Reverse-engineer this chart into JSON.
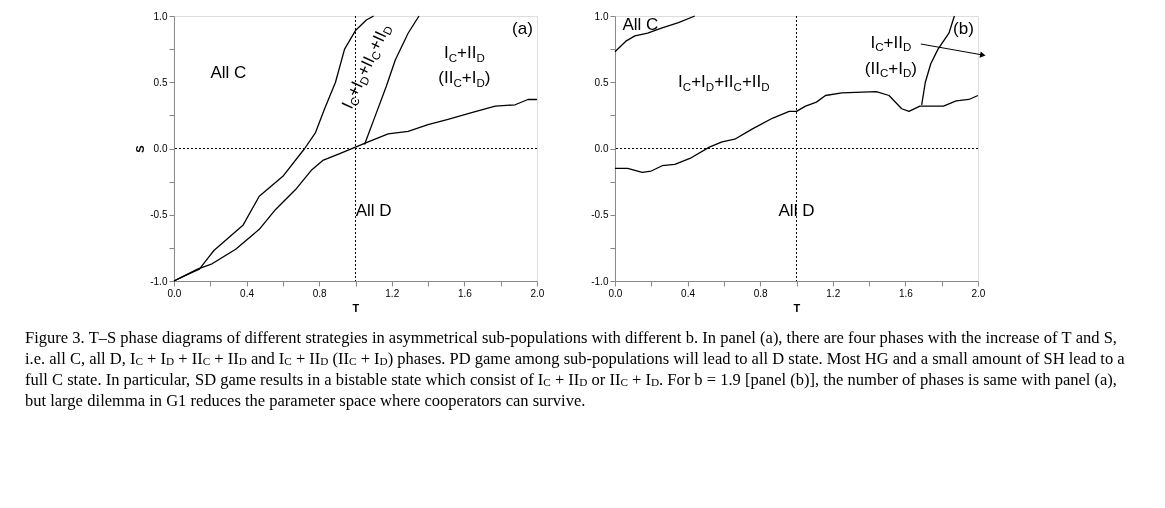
{
  "chart_data": [
    {
      "type": "line",
      "xlabel": "T",
      "ylabel": "S",
      "xlim": [
        0,
        2
      ],
      "ylim": [
        -1,
        1
      ],
      "xticks": [
        {
          "value": 0,
          "label": "0.0"
        },
        {
          "value": 0.2,
          "label": null
        },
        {
          "value": 0.4,
          "label": "0.4"
        },
        {
          "value": 0.6,
          "label": null
        },
        {
          "value": 0.8,
          "label": "0.8"
        },
        {
          "value": 1.0,
          "label": null
        },
        {
          "value": 1.2,
          "label": "1.2"
        },
        {
          "value": 1.4,
          "label": null
        },
        {
          "value": 1.6,
          "label": "1.6"
        },
        {
          "value": 1.8,
          "label": null
        },
        {
          "value": 2.0,
          "label": "2.0"
        }
      ],
      "yticks": [
        {
          "value": -1,
          "label": "-1.0"
        },
        {
          "value": -0.75,
          "label": null
        },
        {
          "value": -0.5,
          "label": "-0.5"
        },
        {
          "value": -0.25,
          "label": null
        },
        {
          "value": 0,
          "label": "0.0"
        },
        {
          "value": 0.25,
          "label": null
        },
        {
          "value": 0.5,
          "label": "0.5"
        },
        {
          "value": 0.75,
          "label": null
        },
        {
          "value": 1,
          "label": "1.0"
        }
      ],
      "grid": false,
      "legend": false,
      "series": [
        {
          "color": "#000000",
          "x": [
            0,
            0.06,
            0.13,
            0.21,
            0.34,
            0.47,
            0.56,
            0.67,
            0.76,
            0.82,
            0.91,
            1.0,
            1.07,
            1.18,
            1.29,
            1.4,
            1.51,
            1.64,
            1.77,
            1.88,
            1.95,
            2.0
          ],
          "values": [
            -1,
            -0.96,
            -0.91,
            -0.87,
            -0.76,
            -0.61,
            -0.46,
            -0.31,
            -0.16,
            -0.09,
            -0.04,
            0.01,
            0.05,
            0.11,
            0.13,
            0.18,
            0.22,
            0.27,
            0.32,
            0.33,
            0.37,
            0.37
          ]
        },
        {
          "color": "#000000",
          "x": [
            0,
            0.06,
            0.14,
            0.22,
            0.38,
            0.47,
            0.6,
            0.72,
            0.78,
            0.83,
            0.89,
            0.94,
            1.0,
            1.06,
            1.1
          ],
          "values": [
            -1,
            -0.96,
            -0.91,
            -0.77,
            -0.58,
            -0.36,
            -0.21,
            0.0,
            0.12,
            0.3,
            0.5,
            0.75,
            0.89,
            0.97,
            1.0
          ]
        },
        {
          "color": "#000000",
          "x": [
            1.05,
            1.11,
            1.17,
            1.22,
            1.29,
            1.35
          ],
          "values": [
            0.03,
            0.25,
            0.47,
            0.67,
            0.87,
            1.0
          ]
        }
      ],
      "ref_lines": [
        {
          "axis": "x",
          "value": 1.0,
          "line_style": "dotted",
          "color": "#000000"
        },
        {
          "axis": "y",
          "value": 0,
          "line_style": "dotted",
          "color": "#000000"
        }
      ],
      "annotations": [
        "All C",
        "I$_{C}$+I$_{D}$+II$_{C}$+II$_{D}$",
        "I$_{C}$+II$_{D}$",
        "(II$_{C}$+I$_{D}$)",
        "All D",
        "(a)",
        "Figure 3. T–S phase diagrams of different strategies in asymmetrical sub-populations with different b. In panel (a), there are four phases with the increase of T and S, i.e. all C, all D, I$_{C}$ + I$_{D}$ + II$_{C}$ + II$_{D}$ and I$_{C}$ + II$_{D}$ (II$_{C}$ + I$_{D}$) phases. PD game among sub-populations will lead to all D state. Most HG and a small amount of SH lead to a full C state. In particular, SD game results in a bistable state which consist of I$_{C}$ + II$_{D}$ or II$_{C}$ + I$_{D}$. For b = 1.9 [panel (b)], the number of phases is same with panel (a), but large dilemma in G1 reduces the parameter space where cooperators can survive."
      ]
    },
    {
      "type": "line",
      "xlabel": "T",
      "xlim": [
        0,
        2
      ],
      "ylim": [
        -1,
        1
      ],
      "xticks": [
        {
          "value": 0,
          "label": "0.0"
        },
        {
          "value": 0.2,
          "label": null
        },
        {
          "value": 0.4,
          "label": "0.4"
        },
        {
          "value": 0.6,
          "label": null
        },
        {
          "value": 0.8,
          "label": "0.8"
        },
        {
          "value": 1.0,
          "label": null
        },
        {
          "value": 1.2,
          "label": "1.2"
        },
        {
          "value": 1.4,
          "label": null
        },
        {
          "value": 1.6,
          "label": "1.6"
        },
        {
          "value": 1.8,
          "label": null
        },
        {
          "value": 2.0,
          "label": "2.0"
        }
      ],
      "yticks": [
        {
          "value": -1,
          "label": "-1.0"
        },
        {
          "value": -0.75,
          "label": null
        },
        {
          "value": -0.5,
          "label": "-0.5"
        },
        {
          "value": -0.25,
          "label": null
        },
        {
          "value": 0,
          "label": "0.0"
        },
        {
          "value": 0.25,
          "label": null
        },
        {
          "value": 0.5,
          "label": "0.5"
        },
        {
          "value": 0.75,
          "label": null
        },
        {
          "value": 1,
          "label": "1.0"
        }
      ],
      "grid": false,
      "legend": false,
      "series": [
        {
          "color": "#000000",
          "x": [
            0,
            0.07,
            0.15,
            0.2,
            0.26,
            0.33,
            0.42,
            0.52,
            0.59,
            0.66,
            0.76,
            0.87,
            0.96,
            1.0,
            1.05,
            1.11,
            1.16,
            1.25,
            1.44,
            1.51,
            1.58,
            1.62,
            1.68,
            1.81,
            1.88,
            1.95,
            2.0
          ],
          "values": [
            -0.15,
            -0.15,
            -0.18,
            -0.17,
            -0.13,
            -0.12,
            -0.07,
            0.01,
            0.05,
            0.07,
            0.15,
            0.23,
            0.28,
            0.28,
            0.32,
            0.35,
            0.4,
            0.42,
            0.43,
            0.4,
            0.3,
            0.28,
            0.32,
            0.32,
            0.36,
            0.37,
            0.4
          ]
        },
        {
          "color": "#000000",
          "x": [
            0,
            0.06,
            0.11,
            0.18,
            0.26,
            0.35,
            0.44
          ],
          "values": [
            0.73,
            0.81,
            0.85,
            0.87,
            0.91,
            0.95,
            1.0
          ]
        },
        {
          "color": "#000000",
          "x": [
            1.69,
            1.71,
            1.74,
            1.78,
            1.84,
            1.87
          ],
          "values": [
            0.33,
            0.5,
            0.64,
            0.75,
            0.87,
            1.0
          ]
        }
      ],
      "ref_lines": [
        {
          "axis": "x",
          "value": 1.0,
          "line_style": "dotted",
          "color": "#000000"
        },
        {
          "axis": "y",
          "value": 0,
          "line_style": "dotted",
          "color": "#000000"
        }
      ],
      "annotations": [
        "All C",
        "I$_{C}$+I$_{D}$+II$_{C}$+II$_{D}$",
        "I$_{C}$+II$_{D}$",
        "(II$_{C}$+I$_{D}$)",
        "All D",
        "(b)"
      ]
    }
  ]
}
